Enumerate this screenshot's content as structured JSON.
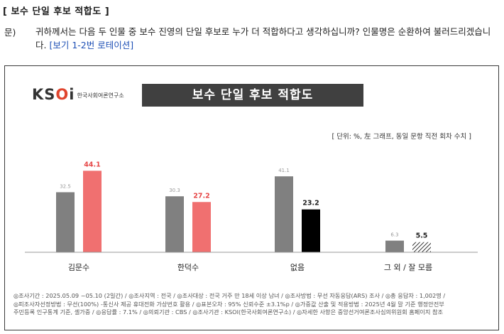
{
  "section_title": "[ 보수 단일 후보 적합도 ]",
  "question": {
    "label": "문)",
    "text": "귀하께서는 다음 두 인물 중 보수 진영의 단일 후보로 누가 더 적합하다고 생각하십니까? 인물명은 순환하여 불러드리겠습니다.",
    "note": "[보기 1-2번 로테이션]"
  },
  "logo": {
    "main_a": "KS",
    "main_o": "O",
    "main_b": "i",
    "sub": "한국사회여론연구소"
  },
  "banner_title": "보수 단일 후보 적합도",
  "unit_note": "[ 단위: %, 左 그래프, 동일 문항 직전 회차 수치 ]",
  "chart_data": {
    "type": "bar",
    "title": "보수 단일 후보 적합도",
    "categories": [
      "김문수",
      "한덕수",
      "없음",
      "그 외 / 잘 모름"
    ],
    "series": [
      {
        "values": [
          32.5,
          30.3,
          41.1,
          6.3
        ],
        "labels": [
          "32.5",
          "30.3",
          "41.1",
          "6.3"
        ]
      },
      {
        "values": [
          44.1,
          27.2,
          23.2,
          5.5
        ],
        "labels": [
          "44.1",
          "27.2",
          "23.2",
          "5.5"
        ]
      }
    ],
    "colors": {
      "previous": "#808080",
      "current_candidate": "#f07070",
      "current_none": "#000000",
      "current_other": "hatched-gray",
      "label_highlight": "#e64545",
      "label_dark": "#222222",
      "label_muted": "#999999"
    },
    "ylim": [
      0,
      50
    ],
    "grid": false,
    "legend": "none"
  },
  "footer": {
    "line1": "◎조사기간 : 2025.05.09 ~05.10 (2일간) / ◎조사지역 : 전국 / ◎조사대상 : 전국 거주 만 18세 이상 남녀 / ◎조사방법 : 무선 자동응답(ARS) 조사 / ◎총 응답자 : 1,002명 /",
    "line2": "◎피조사자선정방법 : 무선(100%) -통신사 제공 휴대전화 가상번호 활용 / ◎표본오차 : 95% 신뢰수준 ±3.1%p / ◎가중값 산출 및 적용방법 : 2025년 4월 말 기준 행정안전부",
    "line3": "주민등록 인구통계 기준, 셀가중 / ◎응답률 : 7.1% / ◎의뢰기관 : CBS / ◎조사기관 : KSOI(한국사회여론연구소) / ◎자세한 사항은 중앙선거여론조사심의위원회 홈페이지 참조"
  }
}
